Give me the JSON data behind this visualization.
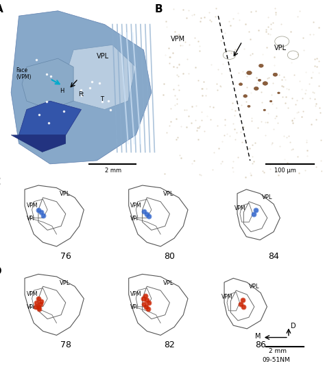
{
  "panel_A_label": "A",
  "panel_B_label": "B",
  "panel_C_label": "C",
  "panel_D_label": "D",
  "panel_A_bg": "#a8c4e0",
  "panel_B_bg": "#d9c9b0",
  "panel_sections_bg": "#ffffff",
  "label_A_texts": [
    "VPL",
    "Face\n(VPM)",
    "H",
    "Ft",
    "T",
    "2 mm"
  ],
  "label_B_texts": [
    "VPM",
    "VPL",
    "100 μm"
  ],
  "section_C_numbers": [
    "76",
    "80",
    "84"
  ],
  "section_D_numbers": [
    "78",
    "82",
    "86"
  ],
  "section_labels": [
    "VPL",
    "VPM",
    "VPi"
  ],
  "compass_labels": [
    "D",
    "M",
    "2 mm"
  ],
  "bottom_label": "09-51NM",
  "blue_dot_color": "#3366cc",
  "red_dot_color": "#cc2200"
}
